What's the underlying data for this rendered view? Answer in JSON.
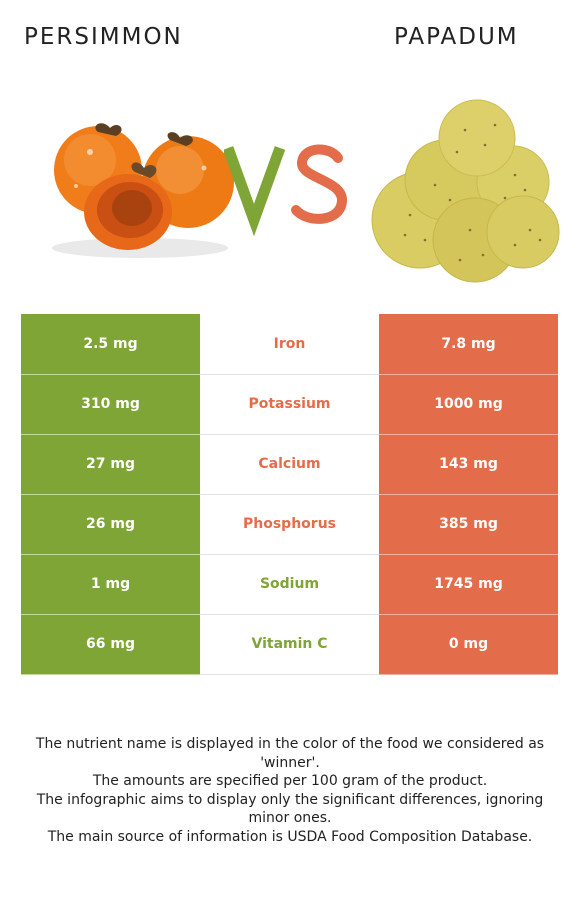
{
  "header": {
    "left_food": "PERSIMMON",
    "right_food": "PAPADUM",
    "vs_text": "VS"
  },
  "colors": {
    "left_accent": "#7ea536",
    "right_accent": "#e36d4b"
  },
  "rows": [
    {
      "nutrient": "Iron",
      "left": "2.5 mg",
      "right": "7.8 mg",
      "winner": "right"
    },
    {
      "nutrient": "Potassium",
      "left": "310 mg",
      "right": "1000 mg",
      "winner": "right"
    },
    {
      "nutrient": "Calcium",
      "left": "27 mg",
      "right": "143 mg",
      "winner": "right"
    },
    {
      "nutrient": "Phosphorus",
      "left": "26 mg",
      "right": "385 mg",
      "winner": "right"
    },
    {
      "nutrient": "Sodium",
      "left": "1 mg",
      "right": "1745 mg",
      "winner": "left"
    },
    {
      "nutrient": "Vitamin C",
      "left": "66 mg",
      "right": "0 mg",
      "winner": "left"
    }
  ],
  "footnotes": [
    "The nutrient name is displayed in the color of the food we considered as 'winner'.",
    "The amounts are specified per 100 gram of the product.",
    "The infographic aims to display only the significant differences, ignoring minor ones.",
    "The main source of information is USDA Food Composition Database."
  ]
}
